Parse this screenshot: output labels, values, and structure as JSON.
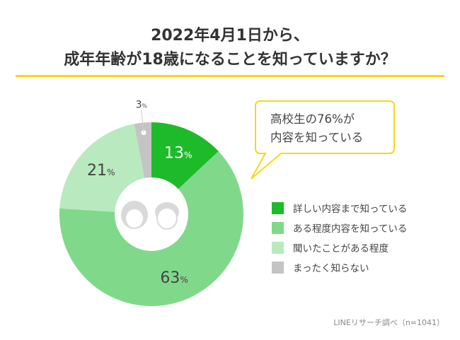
{
  "title_lines": [
    "2022年4月1日から、",
    "成年年齢が18歳になることを知っていますか？"
  ],
  "callout_lines": [
    "高校生の76%が",
    "内容を知っている"
  ],
  "source_note": "LINEリサーチ調べ（n=1041）",
  "colors": {
    "accent": "#f5d916"
  },
  "chart_data": {
    "type": "pie",
    "donut": true,
    "categories": [
      "詳しい内容まで知っている",
      "ある程度内容を知っている",
      "聞いたことがある程度",
      "まったく知らない"
    ],
    "values": [
      13,
      63,
      21,
      3
    ],
    "labels": [
      "13%",
      "63%",
      "21%",
      "3%"
    ],
    "colors": [
      "#1dbb2a",
      "#80d98a",
      "#b9e9bf",
      "#c4c4c4"
    ],
    "legend": "right",
    "unit": "%"
  }
}
